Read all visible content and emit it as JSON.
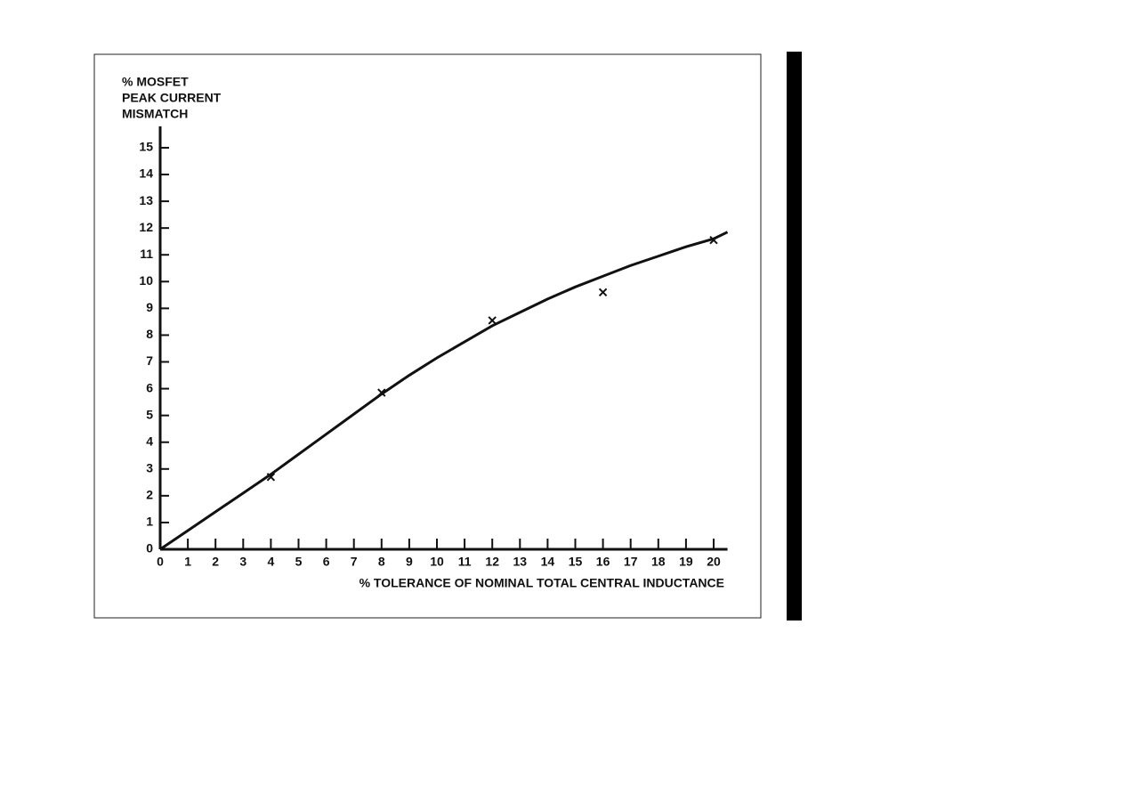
{
  "chart_data": {
    "type": "line",
    "ylabel": [
      "% MOSFET",
      "PEAK CURRENT",
      "MISMATCH"
    ],
    "xlabel": "% TOLERANCE OF NOMINAL TOTAL CENTRAL INDUCTANCE",
    "x": [
      0,
      1,
      2,
      3,
      4,
      5,
      6,
      7,
      8,
      9,
      10,
      11,
      12,
      13,
      14,
      15,
      16,
      17,
      18,
      19,
      20,
      20.5
    ],
    "values": [
      0,
      0.7,
      1.4,
      2.1,
      2.8,
      3.55,
      4.3,
      5.05,
      5.8,
      6.5,
      7.15,
      7.75,
      8.35,
      8.85,
      9.35,
      9.8,
      10.2,
      10.6,
      10.95,
      11.3,
      11.6,
      11.85
    ],
    "color": "#111111",
    "markers": {
      "x": [
        4,
        8,
        12,
        16,
        20
      ],
      "values": [
        2.7,
        5.85,
        8.55,
        9.6,
        11.55
      ]
    },
    "xlim": [
      0,
      20.5
    ],
    "ylim": [
      0,
      15.8
    ],
    "xticks": [
      0,
      1,
      2,
      3,
      4,
      5,
      6,
      7,
      8,
      9,
      10,
      11,
      12,
      13,
      14,
      15,
      16,
      17,
      18,
      19,
      20
    ],
    "yticks": [
      0,
      1,
      2,
      3,
      4,
      5,
      6,
      7,
      8,
      9,
      10,
      11,
      12,
      13,
      14,
      15
    ]
  }
}
